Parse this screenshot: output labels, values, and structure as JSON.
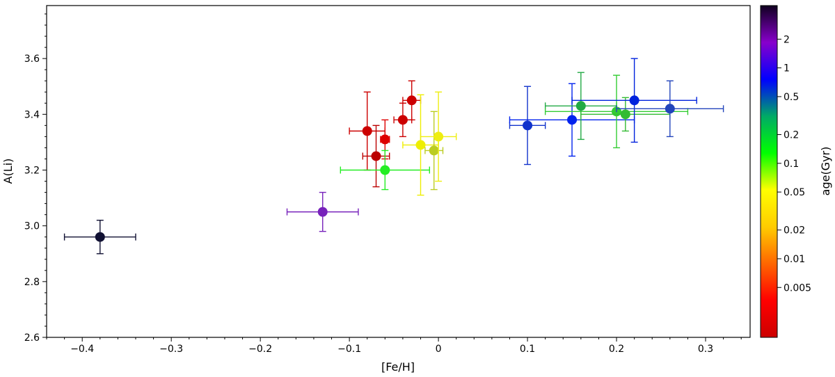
{
  "chart_data": {
    "type": "scatter",
    "title": "",
    "xlabel": "[Fe/H]",
    "ylabel": "A(Li)",
    "xlim": [
      -0.44,
      0.35
    ],
    "ylim": [
      2.6,
      3.79
    ],
    "x_ticks": [
      -0.4,
      -0.3,
      -0.2,
      -0.1,
      0,
      0.1,
      0.2,
      0.3
    ],
    "x_tick_labels": [
      "−0.4",
      "−0.3",
      "−0.2",
      "−0.1",
      "0",
      "0.1",
      "0.2",
      "0.3"
    ],
    "y_ticks": [
      2.6,
      2.8,
      3.0,
      3.2,
      3.4,
      3.6
    ],
    "y_tick_labels": [
      "2.6",
      "2.8",
      "3.0",
      "3.2",
      "3.4",
      "3.6"
    ],
    "grid": false,
    "colorbar": {
      "label": "age(Gyr)",
      "scale": "log",
      "range": [
        0.0015,
        4.5
      ],
      "ticks": [
        0.005,
        0.01,
        0.02,
        0.05,
        0.1,
        0.2,
        0.5,
        1,
        2
      ],
      "tick_labels": [
        "0.005",
        "0.01",
        "0.02",
        "0.05",
        "0.1",
        "0.2",
        "0.5",
        "1",
        "2"
      ],
      "colormap": [
        "#cc0000",
        "#ff0000",
        "#ff6600",
        "#ffcc00",
        "#ffff00",
        "#00ff00",
        "#00aa66",
        "#0000ff",
        "#8800cc",
        "#100020"
      ]
    },
    "points": [
      {
        "x": -0.38,
        "y": 2.96,
        "xerr": 0.04,
        "yerr": [
          0.06,
          0.06
        ],
        "age": 4.2,
        "color": "#111133"
      },
      {
        "x": -0.13,
        "y": 3.05,
        "xerr": 0.04,
        "yerr": [
          0.07,
          0.07
        ],
        "age": 2.5,
        "color": "#7722bb"
      },
      {
        "x": -0.08,
        "y": 3.34,
        "xerr": 0.02,
        "yerr": [
          0.14,
          0.14
        ],
        "age": 0.003,
        "color": "#cc0000"
      },
      {
        "x": -0.07,
        "y": 3.25,
        "xerr": 0.015,
        "yerr": [
          0.11,
          0.11
        ],
        "age": 0.0025,
        "color": "#bb0000"
      },
      {
        "x": -0.06,
        "y": 3.31,
        "xerr": 0.005,
        "yerr": [
          0.07,
          0.07
        ],
        "age": 0.004,
        "color": "#dd0000"
      },
      {
        "x": -0.06,
        "y": 3.2,
        "xerr": 0.05,
        "yerr": [
          0.07,
          0.07
        ],
        "age": 0.08,
        "color": "#22ee22"
      },
      {
        "x": -0.04,
        "y": 3.38,
        "xerr": 0.01,
        "yerr": [
          0.06,
          0.06
        ],
        "age": 0.0028,
        "color": "#cc0000"
      },
      {
        "x": -0.03,
        "y": 3.45,
        "xerr": 0.01,
        "yerr": [
          0.07,
          0.07
        ],
        "age": 0.0032,
        "color": "#cc0000"
      },
      {
        "x": -0.02,
        "y": 3.29,
        "xerr": 0.02,
        "yerr": [
          0.18,
          0.18
        ],
        "age": 0.02,
        "color": "#eeee00"
      },
      {
        "x": -0.005,
        "y": 3.27,
        "xerr": 0.01,
        "yerr": [
          0.14,
          0.14
        ],
        "age": 0.04,
        "color": "#bbcc22"
      },
      {
        "x": 0,
        "y": 3.32,
        "xerr": 0.02,
        "yerr": [
          0.16,
          0.16
        ],
        "age": 0.018,
        "color": "#eeee11"
      },
      {
        "x": 0.1,
        "y": 3.36,
        "xerr": 0.02,
        "yerr": [
          0.14,
          0.14
        ],
        "age": 0.9,
        "color": "#1133cc"
      },
      {
        "x": 0.15,
        "y": 3.38,
        "xerr": 0.07,
        "yerr": [
          0.13,
          0.13
        ],
        "age": 1.1,
        "color": "#0022ee"
      },
      {
        "x": 0.16,
        "y": 3.43,
        "xerr": 0.04,
        "yerr": [
          0.12,
          0.12
        ],
        "age": 0.25,
        "color": "#22aa44"
      },
      {
        "x": 0.2,
        "y": 3.41,
        "xerr": 0.08,
        "yerr": [
          0.13,
          0.13
        ],
        "age": 0.12,
        "color": "#33cc33"
      },
      {
        "x": 0.21,
        "y": 3.4,
        "xerr": 0.05,
        "yerr": [
          0.06,
          0.06
        ],
        "age": 0.18,
        "color": "#33bb33"
      },
      {
        "x": 0.22,
        "y": 3.45,
        "xerr": 0.07,
        "yerr": [
          0.15,
          0.15
        ],
        "age": 1.1,
        "color": "#0022dd"
      },
      {
        "x": 0.26,
        "y": 3.42,
        "xerr": 0.06,
        "yerr": [
          0.1,
          0.1
        ],
        "age": 0.8,
        "color": "#2244bb"
      }
    ]
  }
}
